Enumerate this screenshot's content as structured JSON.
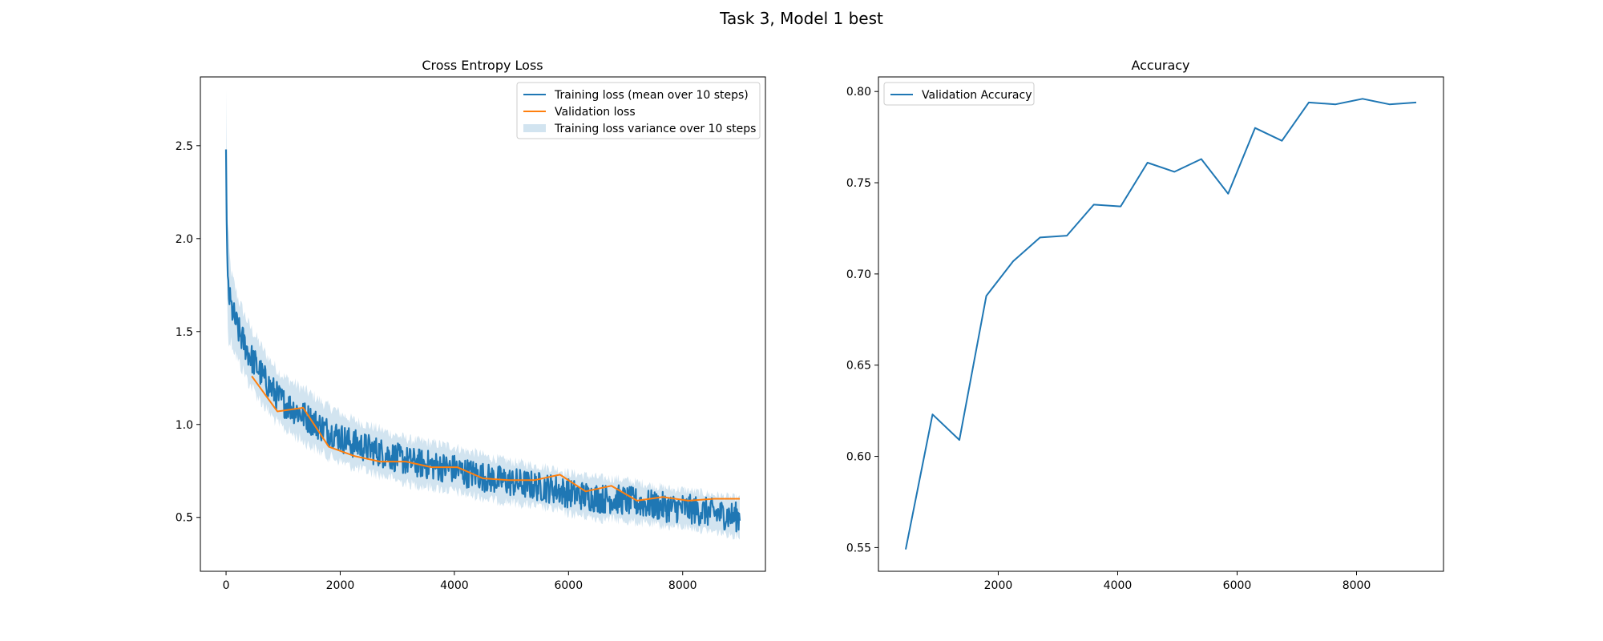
{
  "figure": {
    "suptitle": "Task 3, Model 1 best"
  },
  "colors": {
    "train": "#1f77b4",
    "val": "#ff7f0e",
    "band": "#1f77b4",
    "acc": "#1f77b4"
  },
  "chart_data": [
    {
      "type": "line",
      "title": "Cross Entropy Loss",
      "xlabel": "",
      "ylabel": "",
      "xlim": [
        -450,
        9450
      ],
      "ylim": [
        0.21,
        2.87
      ],
      "xticks": [
        0,
        2000,
        4000,
        6000,
        8000
      ],
      "yticks": [
        0.5,
        1.0,
        1.5,
        2.0,
        2.5
      ],
      "xtick_labels": [
        "0",
        "2000",
        "4000",
        "6000",
        "8000"
      ],
      "ytick_labels": [
        "0.5",
        "1.0",
        "1.5",
        "2.0",
        "2.5"
      ],
      "legend": {
        "placement": "upper right",
        "entries": [
          "Training loss (mean over 10 steps)",
          "Validation loss",
          "Training loss variance over 10 steps"
        ]
      },
      "series": [
        {
          "name": "Training loss (mean over 10 steps)",
          "kind": "line",
          "x": [
            0,
            10,
            20,
            30,
            40,
            50,
            75,
            100,
            150,
            200,
            250,
            300,
            400,
            500,
            600,
            700,
            800,
            900,
            1000,
            1100,
            1200,
            1300,
            1400,
            1500,
            1600,
            1700,
            1800,
            1900,
            2000,
            2200,
            2400,
            2600,
            2800,
            3000,
            3200,
            3400,
            3600,
            3800,
            4000,
            4200,
            4400,
            4600,
            4800,
            5000,
            5200,
            5400,
            5600,
            5800,
            6000,
            6200,
            6400,
            6600,
            6800,
            7000,
            7200,
            7400,
            7600,
            7800,
            8000,
            8200,
            8400,
            8600,
            8800,
            9000
          ],
          "y": [
            2.48,
            2.1,
            1.92,
            1.8,
            1.75,
            1.7,
            1.65,
            1.62,
            1.57,
            1.52,
            1.48,
            1.45,
            1.38,
            1.33,
            1.28,
            1.23,
            1.19,
            1.15,
            1.12,
            1.1,
            1.08,
            1.06,
            1.04,
            1.02,
            1.0,
            0.98,
            0.96,
            0.95,
            0.93,
            0.9,
            0.88,
            0.86,
            0.84,
            0.82,
            0.8,
            0.79,
            0.78,
            0.77,
            0.76,
            0.74,
            0.73,
            0.71,
            0.7,
            0.69,
            0.68,
            0.67,
            0.66,
            0.65,
            0.63,
            0.62,
            0.61,
            0.6,
            0.6,
            0.59,
            0.58,
            0.57,
            0.56,
            0.55,
            0.55,
            0.54,
            0.53,
            0.52,
            0.51,
            0.5
          ],
          "noise_amplitude": 0.05
        },
        {
          "name": "Validation loss",
          "kind": "line",
          "x": [
            450,
            900,
            1350,
            1800,
            2250,
            2700,
            3150,
            3600,
            4050,
            4500,
            4950,
            5400,
            5850,
            6300,
            6750,
            7200,
            7650,
            8100,
            8550,
            9000
          ],
          "y": [
            1.26,
            1.07,
            1.09,
            0.88,
            0.83,
            0.8,
            0.8,
            0.77,
            0.77,
            0.71,
            0.7,
            0.7,
            0.73,
            0.64,
            0.67,
            0.59,
            0.61,
            0.59,
            0.6,
            0.6
          ]
        },
        {
          "name": "Training loss variance over 10 steps",
          "kind": "band",
          "x": [
            0,
            100,
            300,
            600,
            1000,
            1500,
            2000,
            3000,
            4000,
            5000,
            6000,
            7000,
            8000,
            9000
          ],
          "half_width": [
            0.3,
            0.18,
            0.16,
            0.15,
            0.14,
            0.14,
            0.13,
            0.12,
            0.12,
            0.11,
            0.11,
            0.11,
            0.1,
            0.1
          ]
        }
      ]
    },
    {
      "type": "line",
      "title": "Accuracy",
      "xlabel": "",
      "ylabel": "",
      "xlim": [
        -6,
        9456
      ],
      "ylim": [
        0.537,
        0.808
      ],
      "xticks": [
        2000,
        4000,
        6000,
        8000
      ],
      "yticks": [
        0.55,
        0.6,
        0.65,
        0.7,
        0.75,
        0.8
      ],
      "xtick_labels": [
        "2000",
        "4000",
        "6000",
        "8000"
      ],
      "ytick_labels": [
        "0.55",
        "0.60",
        "0.65",
        "0.70",
        "0.75",
        "0.80"
      ],
      "legend": {
        "placement": "upper left",
        "entries": [
          "Validation Accuracy"
        ]
      },
      "series": [
        {
          "name": "Validation Accuracy",
          "kind": "line",
          "x": [
            450,
            900,
            1350,
            1800,
            2250,
            2700,
            3150,
            3600,
            4050,
            4500,
            4950,
            5400,
            5850,
            6300,
            6750,
            7200,
            7650,
            8100,
            8550,
            9000
          ],
          "y": [
            0.549,
            0.623,
            0.609,
            0.688,
            0.707,
            0.72,
            0.721,
            0.738,
            0.737,
            0.761,
            0.756,
            0.763,
            0.744,
            0.78,
            0.773,
            0.794,
            0.793,
            0.796,
            0.793,
            0.794
          ]
        }
      ]
    }
  ]
}
